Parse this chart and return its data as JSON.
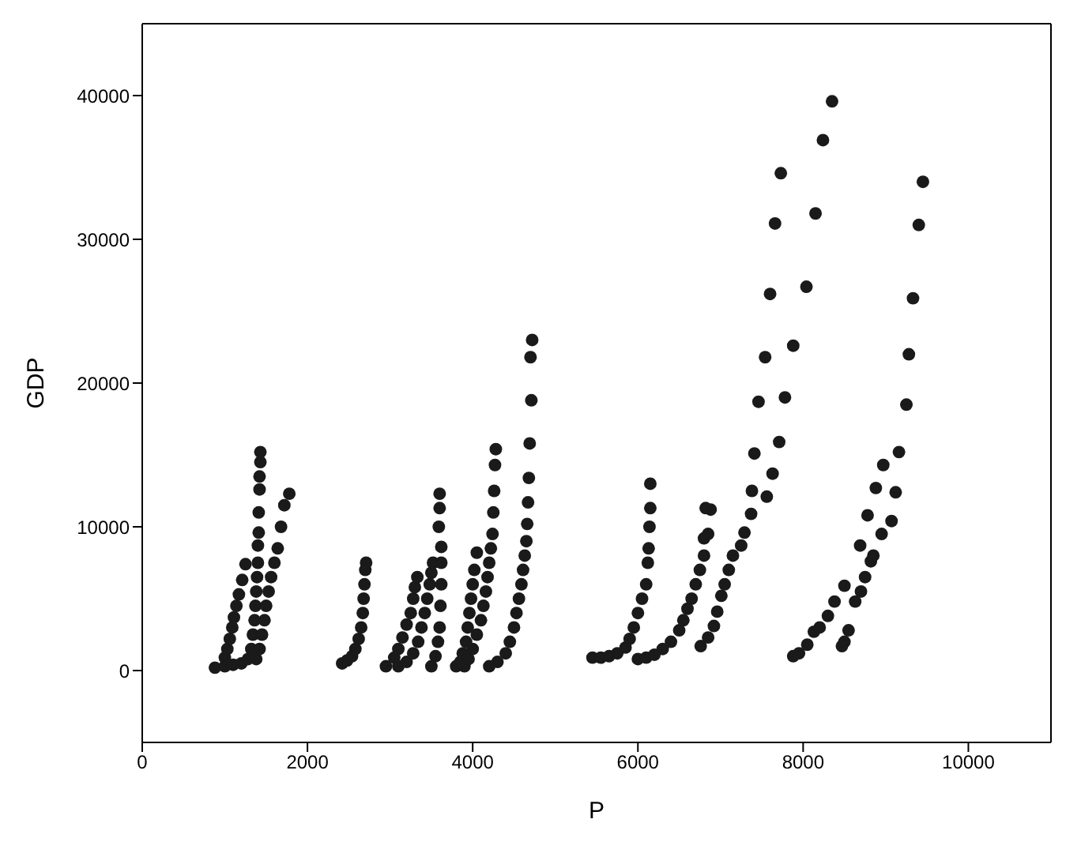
{
  "chart_data": {
    "type": "scatter",
    "xlabel": "P",
    "ylabel": "GDP",
    "xlim": [
      0,
      11000
    ],
    "ylim": [
      -5000,
      45000
    ],
    "xticks": [
      0,
      2000,
      4000,
      6000,
      8000,
      10000
    ],
    "yticks": [
      0,
      10000,
      20000,
      30000,
      40000
    ],
    "grid": false,
    "marker": "circle",
    "series": [
      {
        "color": "#1a1a1a",
        "x": [
          880,
          1000,
          1030,
          1060,
          1090,
          1110,
          1140,
          1170,
          1210,
          1250,
          1000,
          1100,
          1200,
          1280,
          1320,
          1340,
          1360,
          1370,
          1380,
          1390,
          1400,
          1400,
          1410,
          1410,
          1420,
          1420,
          1430,
          1430,
          1380,
          1420,
          1450,
          1480,
          1500,
          1530,
          1560,
          1600,
          1640,
          1680,
          1720,
          1780,
          2420,
          2480,
          2540,
          2580,
          2620,
          2650,
          2670,
          2680,
          2690,
          2700,
          2710,
          2950,
          3050,
          3100,
          3150,
          3200,
          3250,
          3280,
          3300,
          3330,
          3100,
          3200,
          3280,
          3340,
          3380,
          3420,
          3450,
          3480,
          3500,
          3520,
          3500,
          3550,
          3580,
          3600,
          3610,
          3620,
          3620,
          3620,
          3590,
          3600,
          3600,
          3800,
          3850,
          3880,
          3920,
          3940,
          3960,
          3980,
          4000,
          4020,
          4050,
          3900,
          3950,
          4000,
          4050,
          4100,
          4130,
          4160,
          4180,
          4200,
          4220,
          4240,
          4250,
          4260,
          4270,
          4280,
          4200,
          4300,
          4400,
          4450,
          4500,
          4530,
          4560,
          4590,
          4610,
          4630,
          4650,
          4660,
          4670,
          4680,
          4690,
          4710,
          4700,
          4720,
          5450,
          5550,
          5650,
          5750,
          5850,
          5900,
          5950,
          6000,
          6050,
          6100,
          6120,
          6130,
          6140,
          6150,
          6150,
          6000,
          6100,
          6200,
          6300,
          6400,
          6500,
          6550,
          6600,
          6650,
          6700,
          6750,
          6800,
          6850,
          6880,
          6760,
          6850,
          6920,
          6960,
          7010,
          7050,
          7100,
          7150,
          7250,
          6800,
          6820,
          7290,
          7370,
          7380,
          7410,
          7460,
          7540,
          7600,
          7660,
          7730,
          7560,
          7630,
          7710,
          7780,
          7880,
          8040,
          8150,
          8240,
          8350,
          7880,
          7950,
          8050,
          8130,
          8200,
          8300,
          8380,
          8500,
          8690,
          8780,
          8880,
          8970,
          9160,
          8470,
          8500,
          8550,
          8630,
          8700,
          8750,
          8820,
          8850,
          8950,
          9070,
          9120,
          9250,
          9280,
          9330,
          9400,
          9450
        ],
        "values": [
          200,
          900,
          1500,
          2200,
          3000,
          3700,
          4500,
          5300,
          6300,
          7400,
          300,
          400,
          500,
          800,
          1500,
          2500,
          3500,
          4500,
          5500,
          6500,
          7500,
          8700,
          9600,
          11000,
          12600,
          13500,
          14500,
          15200,
          800,
          1500,
          2500,
          3500,
          4500,
          5500,
          6500,
          7500,
          8500,
          10000,
          11500,
          12300,
          500,
          700,
          1000,
          1500,
          2200,
          3000,
          4000,
          5000,
          6000,
          7000,
          7500,
          300,
          900,
          1500,
          2300,
          3200,
          4000,
          5000,
          5800,
          6500,
          300,
          600,
          1200,
          2000,
          3000,
          4000,
          5000,
          6000,
          6800,
          7500,
          300,
          1000,
          2000,
          3000,
          4500,
          6000,
          7500,
          8600,
          10000,
          11300,
          12300,
          300,
          600,
          1200,
          2000,
          3000,
          4000,
          5000,
          6000,
          7000,
          8200,
          300,
          800,
          1500,
          2500,
          3500,
          4500,
          5500,
          6500,
          7500,
          8500,
          9500,
          11000,
          12500,
          14300,
          15400,
          300,
          600,
          1200,
          2000,
          3000,
          4000,
          5000,
          6000,
          7000,
          8000,
          9000,
          10200,
          11700,
          13400,
          15800,
          18800,
          21800,
          23000,
          900,
          900,
          1000,
          1200,
          1600,
          2200,
          3000,
          4000,
          5000,
          6000,
          7500,
          8500,
          10000,
          11300,
          13000,
          800,
          900,
          1100,
          1500,
          2000,
          2800,
          3500,
          4300,
          5000,
          6000,
          7000,
          8000,
          9500,
          11200,
          1700,
          2300,
          3100,
          4100,
          5200,
          6000,
          7000,
          8000,
          8700,
          9200,
          11300,
          9600,
          10900,
          12500,
          15100,
          18700,
          21800,
          26200,
          31100,
          34600,
          12100,
          13700,
          15900,
          19000,
          22600,
          26700,
          31800,
          36900,
          39600,
          1000,
          1200,
          1800,
          2700,
          3000,
          3800,
          4800,
          5900,
          8700,
          10800,
          12700,
          14300,
          15200,
          1700,
          2000,
          2800,
          4800,
          5500,
          6500,
          7600,
          8000,
          9500,
          10400,
          12400,
          18500,
          22000,
          25900,
          31000,
          34000
        ]
      }
    ]
  }
}
